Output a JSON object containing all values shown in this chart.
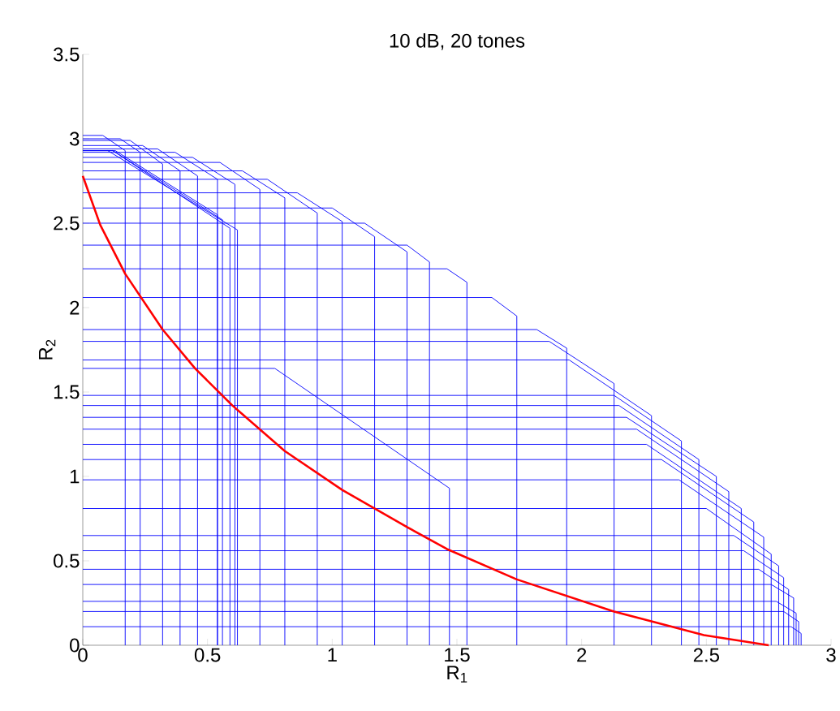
{
  "chart_data": {
    "type": "line",
    "title": "10 dB, 20 tones",
    "xlabel": "R$_{1}$",
    "ylabel": "R$_{2}$",
    "xlim": [
      0,
      3
    ],
    "ylim": [
      0,
      3.5
    ],
    "xticks": [
      0,
      0.5,
      1,
      1.5,
      2,
      2.5,
      3
    ],
    "yticks": [
      0,
      0.5,
      1,
      1.5,
      2,
      2.5,
      3,
      3.5
    ],
    "series": [
      {
        "color": "#0000ff",
        "x": [
          0,
          0.08,
          0.17,
          0.17
        ],
        "values": [
          3.02,
          3.02,
          2.93,
          0
        ]
      },
      {
        "color": "#0000ff",
        "x": [
          0,
          0.15,
          0.23,
          0.23
        ],
        "values": [
          3.0,
          3.0,
          2.92,
          0
        ]
      },
      {
        "color": "#0000ff",
        "x": [
          0,
          0.19,
          0.32,
          0.32
        ],
        "values": [
          2.99,
          2.99,
          2.85,
          0
        ]
      },
      {
        "color": "#0000ff",
        "x": [
          0,
          0.24,
          0.39,
          0.39
        ],
        "values": [
          2.96,
          2.96,
          2.81,
          0
        ]
      },
      {
        "color": "#0000ff",
        "x": [
          0,
          0.3,
          0.46,
          0.46
        ],
        "values": [
          2.94,
          2.94,
          2.78,
          0
        ]
      },
      {
        "color": "#0000ff",
        "x": [
          0,
          0.37,
          0.54,
          0.54
        ],
        "values": [
          2.92,
          2.92,
          2.76,
          0
        ]
      },
      {
        "color": "#0000ff",
        "x": [
          0,
          0.44,
          0.61,
          0.61
        ],
        "values": [
          2.89,
          2.89,
          2.73,
          0
        ]
      },
      {
        "color": "#0000ff",
        "x": [
          0,
          0.55,
          0.71,
          0.71
        ],
        "values": [
          2.86,
          2.86,
          2.7,
          0
        ]
      },
      {
        "color": "#0000ff",
        "x": [
          0,
          0.64,
          0.81,
          0.81
        ],
        "values": [
          2.81,
          2.81,
          2.65,
          0
        ]
      },
      {
        "color": "#0000ff",
        "x": [
          0,
          0.74,
          0.94,
          0.94
        ],
        "values": [
          2.76,
          2.76,
          2.56,
          0
        ]
      },
      {
        "color": "#0000ff",
        "x": [
          0,
          0.86,
          1.04,
          1.04
        ],
        "values": [
          2.68,
          2.68,
          2.51,
          0
        ]
      },
      {
        "color": "#0000ff",
        "x": [
          0,
          1.0,
          1.17,
          1.17
        ],
        "values": [
          2.59,
          2.59,
          2.42,
          0
        ]
      },
      {
        "color": "#0000ff",
        "x": [
          0,
          1.13,
          1.3,
          1.3
        ],
        "values": [
          2.5,
          2.5,
          2.33,
          0
        ]
      },
      {
        "color": "#0000ff",
        "x": [
          0,
          1.3,
          1.39,
          1.39
        ],
        "values": [
          2.37,
          2.37,
          2.27,
          0
        ]
      },
      {
        "color": "#0000ff",
        "x": [
          0,
          1.46,
          1.54,
          1.54
        ],
        "values": [
          2.23,
          2.23,
          2.15,
          0
        ]
      },
      {
        "color": "#0000ff",
        "x": [
          0,
          1.64,
          1.74,
          1.74
        ],
        "values": [
          2.06,
          2.06,
          1.95,
          0
        ]
      },
      {
        "color": "#0000ff",
        "x": [
          0,
          1.82,
          1.94,
          1.94
        ],
        "values": [
          1.87,
          1.87,
          1.76,
          0
        ]
      },
      {
        "color": "#0000ff",
        "x": [
          0,
          1.87,
          2.13,
          2.13
        ],
        "values": [
          1.8,
          1.8,
          1.55,
          0
        ]
      },
      {
        "color": "#0000ff",
        "x": [
          0,
          1.95,
          2.28,
          2.28
        ],
        "values": [
          1.69,
          1.69,
          1.36,
          0
        ]
      },
      {
        "color": "#0000ff",
        "x": [
          0,
          2.13,
          2.4,
          2.4
        ],
        "values": [
          1.48,
          1.48,
          1.21,
          0
        ]
      },
      {
        "color": "#0000ff",
        "x": [
          0,
          2.15,
          2.47,
          2.47
        ],
        "values": [
          1.42,
          1.42,
          1.1,
          0
        ]
      },
      {
        "color": "#0000ff",
        "x": [
          0,
          2.18,
          2.54,
          2.54
        ],
        "values": [
          1.35,
          1.35,
          1.0,
          0
        ]
      },
      {
        "color": "#0000ff",
        "x": [
          0,
          2.22,
          2.59,
          2.59
        ],
        "values": [
          1.28,
          1.28,
          0.91,
          0
        ]
      },
      {
        "color": "#0000ff",
        "x": [
          0,
          2.26,
          2.64,
          2.64
        ],
        "values": [
          1.19,
          1.19,
          0.81,
          0
        ]
      },
      {
        "color": "#0000ff",
        "x": [
          0,
          2.32,
          2.69,
          2.69
        ],
        "values": [
          1.1,
          1.1,
          0.73,
          0
        ]
      },
      {
        "color": "#0000ff",
        "x": [
          0,
          2.39,
          2.73,
          2.73
        ],
        "values": [
          0.98,
          0.98,
          0.64,
          0
        ]
      },
      {
        "color": "#0000ff",
        "x": [
          0,
          2.5,
          2.76,
          2.76
        ],
        "values": [
          0.81,
          0.81,
          0.54,
          0
        ]
      },
      {
        "color": "#0000ff",
        "x": [
          0,
          2.61,
          2.79,
          2.79
        ],
        "values": [
          0.65,
          0.65,
          0.47,
          0
        ]
      },
      {
        "color": "#0000ff",
        "x": [
          0,
          2.65,
          2.81,
          2.81
        ],
        "values": [
          0.56,
          0.56,
          0.4,
          0
        ]
      },
      {
        "color": "#0000ff",
        "x": [
          0,
          2.71,
          2.83,
          2.83
        ],
        "values": [
          0.45,
          0.45,
          0.33,
          0
        ]
      },
      {
        "color": "#0000ff",
        "x": [
          0,
          2.76,
          2.85,
          2.85
        ],
        "values": [
          0.36,
          0.36,
          0.28,
          0
        ]
      },
      {
        "color": "#0000ff",
        "x": [
          0,
          2.78,
          2.86,
          2.86
        ],
        "values": [
          0.26,
          0.26,
          0.19,
          0
        ]
      },
      {
        "color": "#0000ff",
        "x": [
          0,
          2.81,
          2.87,
          2.87
        ],
        "values": [
          0.2,
          0.2,
          0.14,
          0
        ]
      },
      {
        "color": "#0000ff",
        "x": [
          0,
          2.84,
          2.88,
          2.88
        ],
        "values": [
          0.11,
          0.11,
          0.07,
          0
        ]
      },
      {
        "color": "#0000ff",
        "x": [
          0,
          0.1,
          0.62,
          0.62
        ],
        "values": [
          2.93,
          2.93,
          2.46,
          0
        ]
      },
      {
        "color": "#0000ff",
        "x": [
          0,
          0.12,
          0.59,
          0.59
        ],
        "values": [
          2.93,
          2.93,
          2.47,
          0
        ]
      },
      {
        "color": "#0000ff",
        "x": [
          0,
          0.12,
          0.56,
          0.56
        ],
        "values": [
          2.93,
          2.93,
          2.52,
          0
        ]
      },
      {
        "color": "#0000ff",
        "x": [
          0,
          0.13,
          0.54,
          0.54
        ],
        "values": [
          2.93,
          2.93,
          2.55,
          0
        ]
      },
      {
        "color": "#0000ff",
        "x": [
          0,
          0.77,
          1.47,
          1.47
        ],
        "values": [
          1.64,
          1.64,
          0.93,
          0
        ]
      },
      {
        "color": "#ff0000",
        "x": [
          0,
          0.07,
          0.17,
          0.32,
          0.45,
          0.6,
          0.81,
          1.04,
          1.3,
          1.46,
          1.74,
          2.13,
          2.49,
          2.75
        ],
        "values": [
          2.78,
          2.49,
          2.2,
          1.87,
          1.64,
          1.42,
          1.15,
          0.92,
          0.7,
          0.57,
          0.39,
          0.2,
          0.06,
          0
        ]
      }
    ]
  }
}
